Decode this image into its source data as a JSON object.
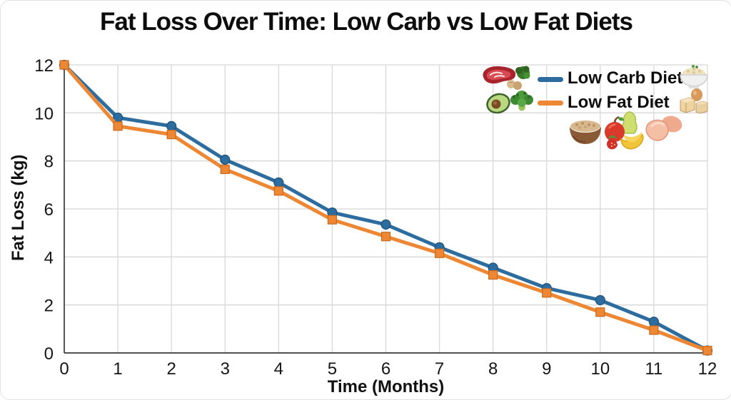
{
  "figure": {
    "background": "#FFFFFF"
  },
  "chart_data": {
    "type": "line",
    "title": "Fat Loss Over Time: Low Carb vs Low Fat Diets",
    "xlabel": "Time (Months)",
    "ylabel": "Fat Loss (kg)",
    "xlim": [
      0,
      12
    ],
    "ylim": [
      0,
      12
    ],
    "xticks": [
      0,
      1,
      2,
      3,
      4,
      5,
      6,
      7,
      8,
      9,
      10,
      11,
      12
    ],
    "yticks": [
      0,
      2,
      4,
      6,
      8,
      10,
      12
    ],
    "grid": true,
    "legend_position": "top-right",
    "x": [
      0,
      1,
      2,
      3,
      4,
      5,
      6,
      7,
      8,
      9,
      10,
      11,
      12
    ],
    "series": [
      {
        "name": "Low Carb Diet",
        "color": "#2C6C9E",
        "edge_color": "#1E5078",
        "marker": "circle",
        "values": [
          12,
          9.8,
          9.45,
          8.05,
          7.1,
          5.85,
          5.35,
          4.4,
          3.55,
          2.7,
          2.2,
          1.3,
          0.1
        ]
      },
      {
        "name": "Low Fat Diet",
        "color": "#ED8733",
        "edge_color": "#C86A20",
        "marker": "square",
        "values": [
          12,
          9.45,
          9.1,
          7.65,
          6.75,
          5.55,
          4.85,
          4.15,
          3.25,
          2.5,
          1.7,
          0.95,
          0.1
        ]
      }
    ]
  },
  "legend": {
    "items": [
      {
        "label": "Low Carb Diet",
        "color": "#2C6C9E"
      },
      {
        "label": "Low Fat Diet",
        "color": "#ED8733"
      }
    ],
    "icons": [
      "steak",
      "mushrooms",
      "dark-broccoli",
      "rice-bowl",
      "avocado",
      "broccoli",
      "tofu-and-egg",
      "grain-bowl",
      "apple-pear-banana-strawberry",
      "chicken-breast"
    ]
  },
  "colors": {
    "grid": "#D8D8D8",
    "spine": "#3A3A3A",
    "text": "#161616",
    "background": "#FFFFFF"
  }
}
